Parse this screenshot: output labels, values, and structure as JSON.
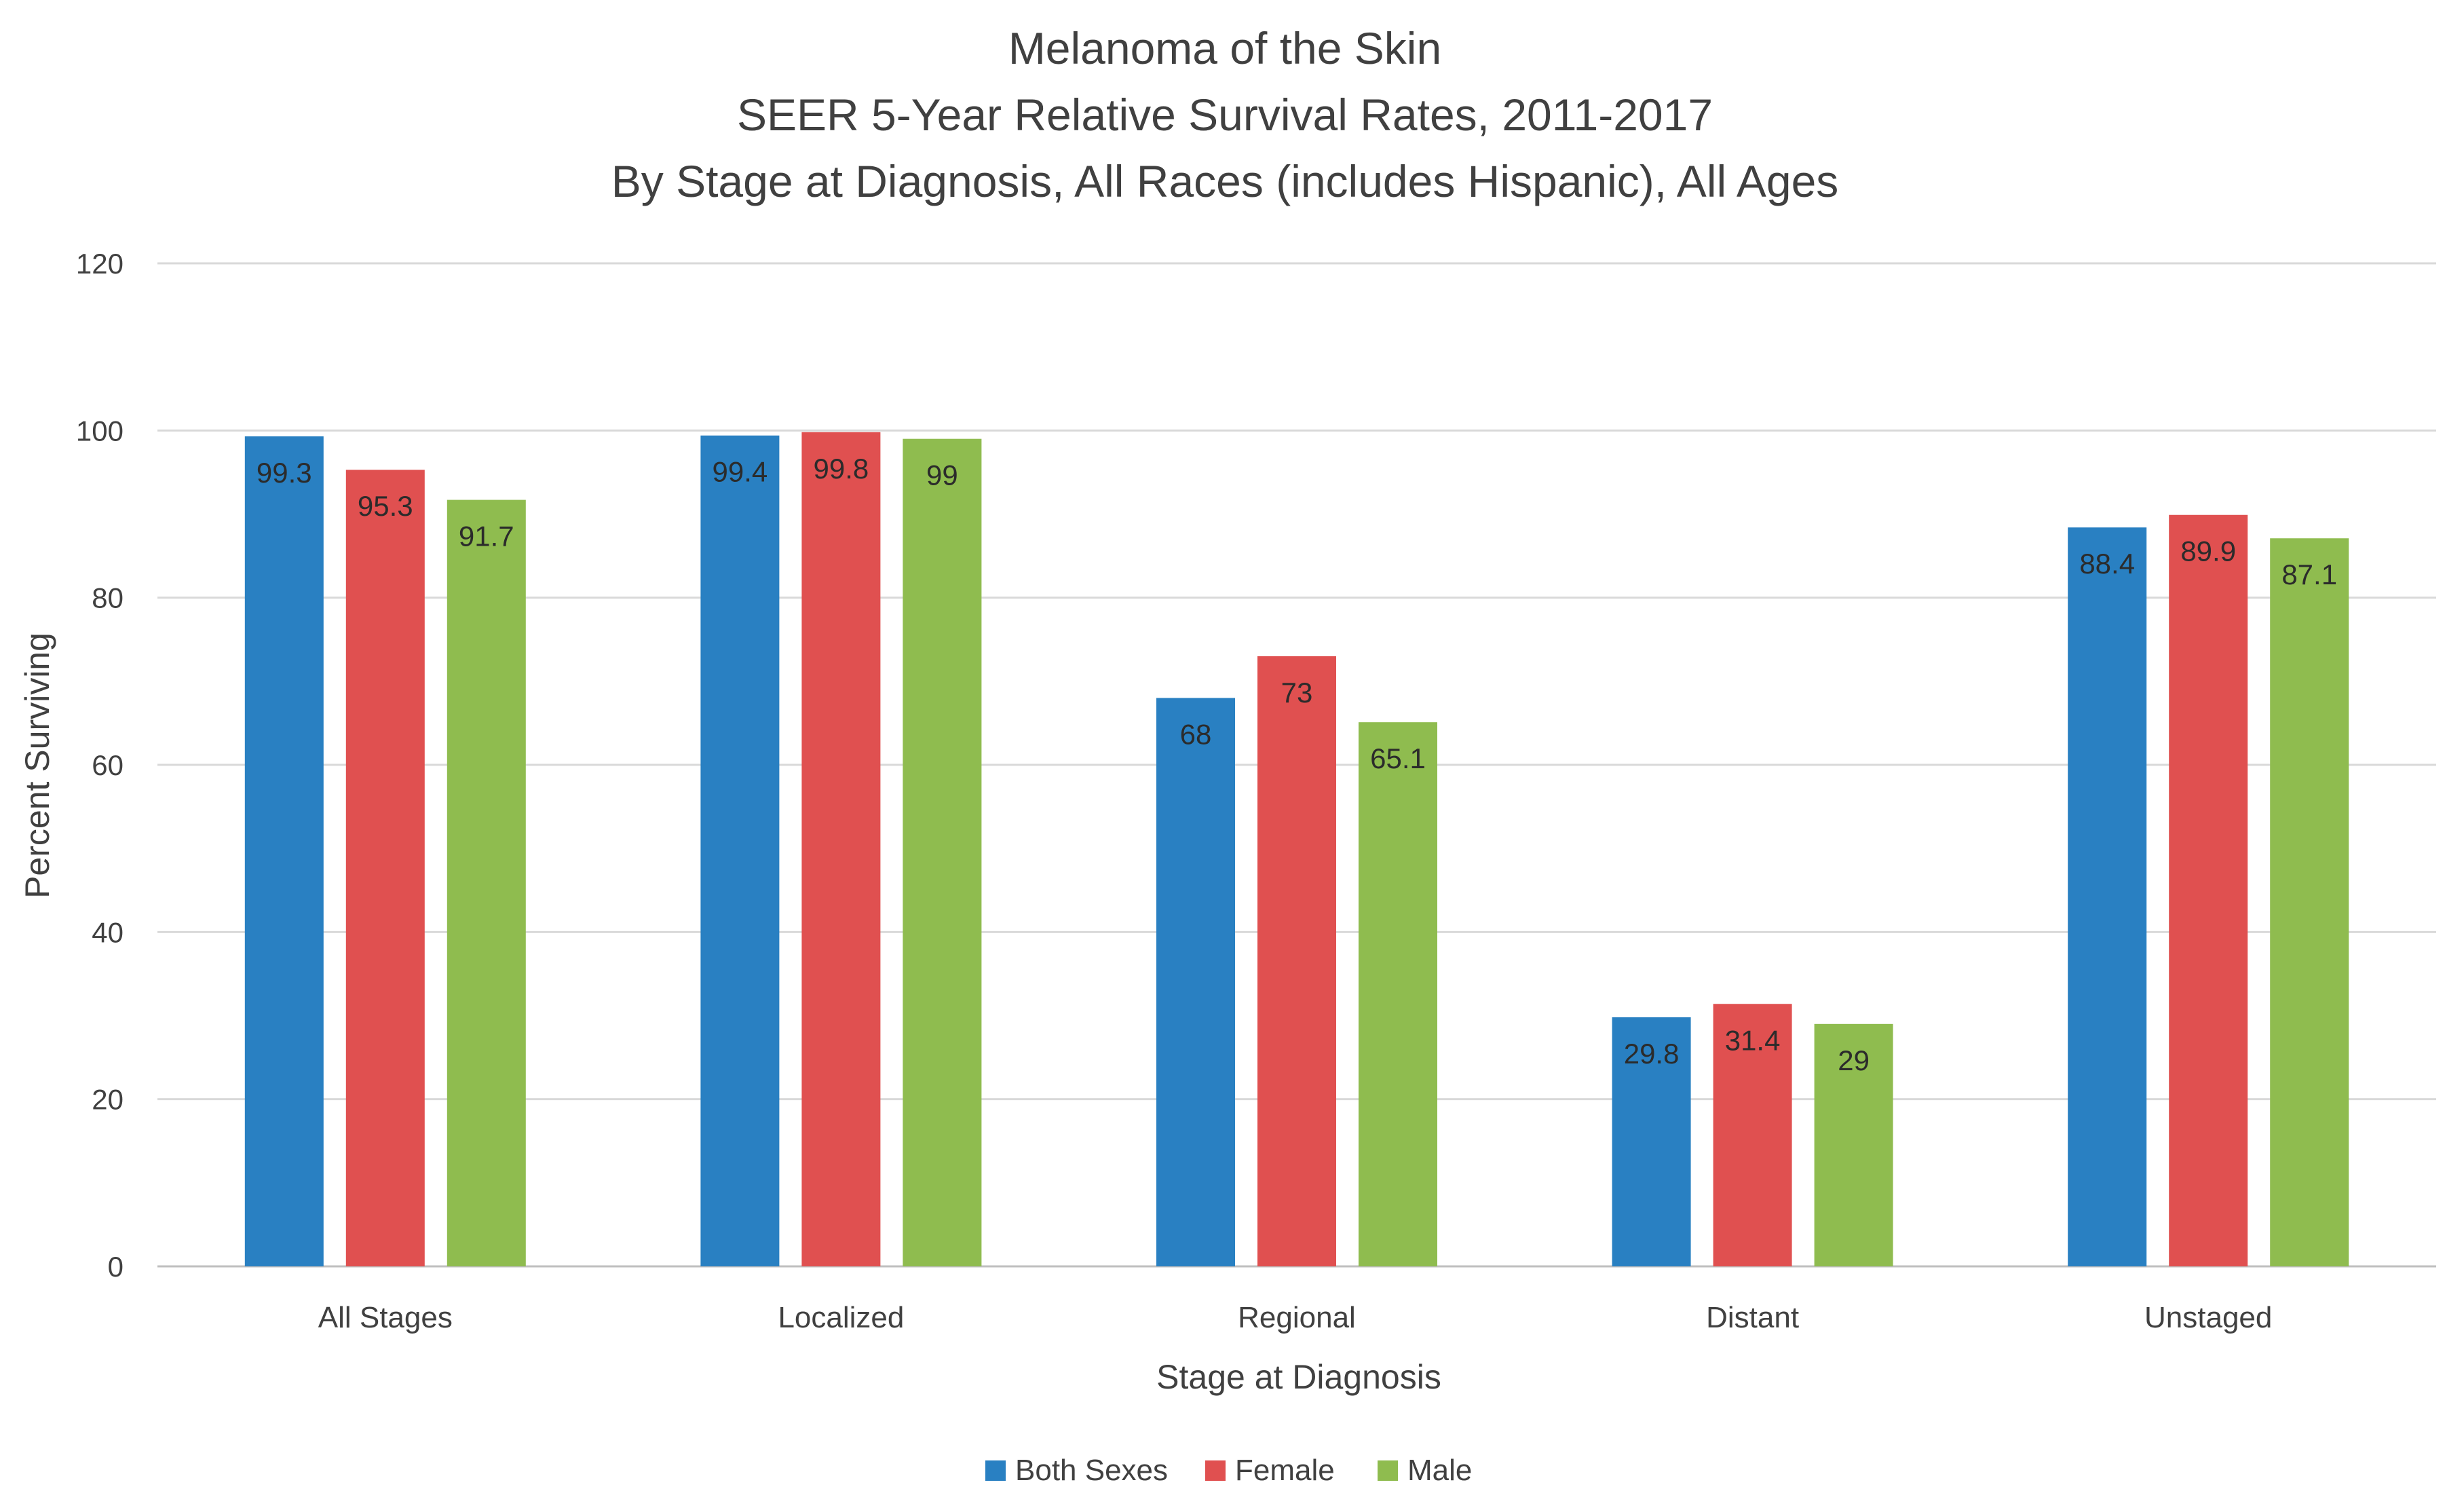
{
  "chart_data": {
    "type": "bar",
    "title": [
      "Melanoma of the Skin",
      "SEER 5-Year Relative Survival Rates, 2011-2017",
      "By Stage at Diagnosis, All Races (includes Hispanic), All Ages"
    ],
    "xlabel": "Stage at Diagnosis",
    "ylabel": "Percent Surviving",
    "categories": [
      "All Stages",
      "Localized",
      "Regional",
      "Distant",
      "Unstaged"
    ],
    "ylim": [
      0,
      120
    ],
    "yticks": [
      0,
      20,
      40,
      60,
      80,
      100,
      120
    ],
    "grid": true,
    "legend_position": "bottom",
    "series": [
      {
        "name": "Both Sexes",
        "color": "#2980c2",
        "values": [
          99.3,
          99.4,
          68,
          29.8,
          88.4
        ],
        "labels": [
          "99.3",
          "99.4",
          "68",
          "29.8",
          "88.4"
        ]
      },
      {
        "name": "Female",
        "color": "#e05050",
        "values": [
          95.3,
          99.8,
          73,
          31.4,
          89.9
        ],
        "labels": [
          "95.3",
          "99.8",
          "73",
          "31.4",
          "89.9"
        ]
      },
      {
        "name": "Male",
        "color": "#8fbc4f",
        "values": [
          91.7,
          99,
          65.1,
          29,
          87.1
        ],
        "labels": [
          "91.7",
          "99",
          "65.1",
          "29",
          "87.1"
        ]
      }
    ]
  }
}
